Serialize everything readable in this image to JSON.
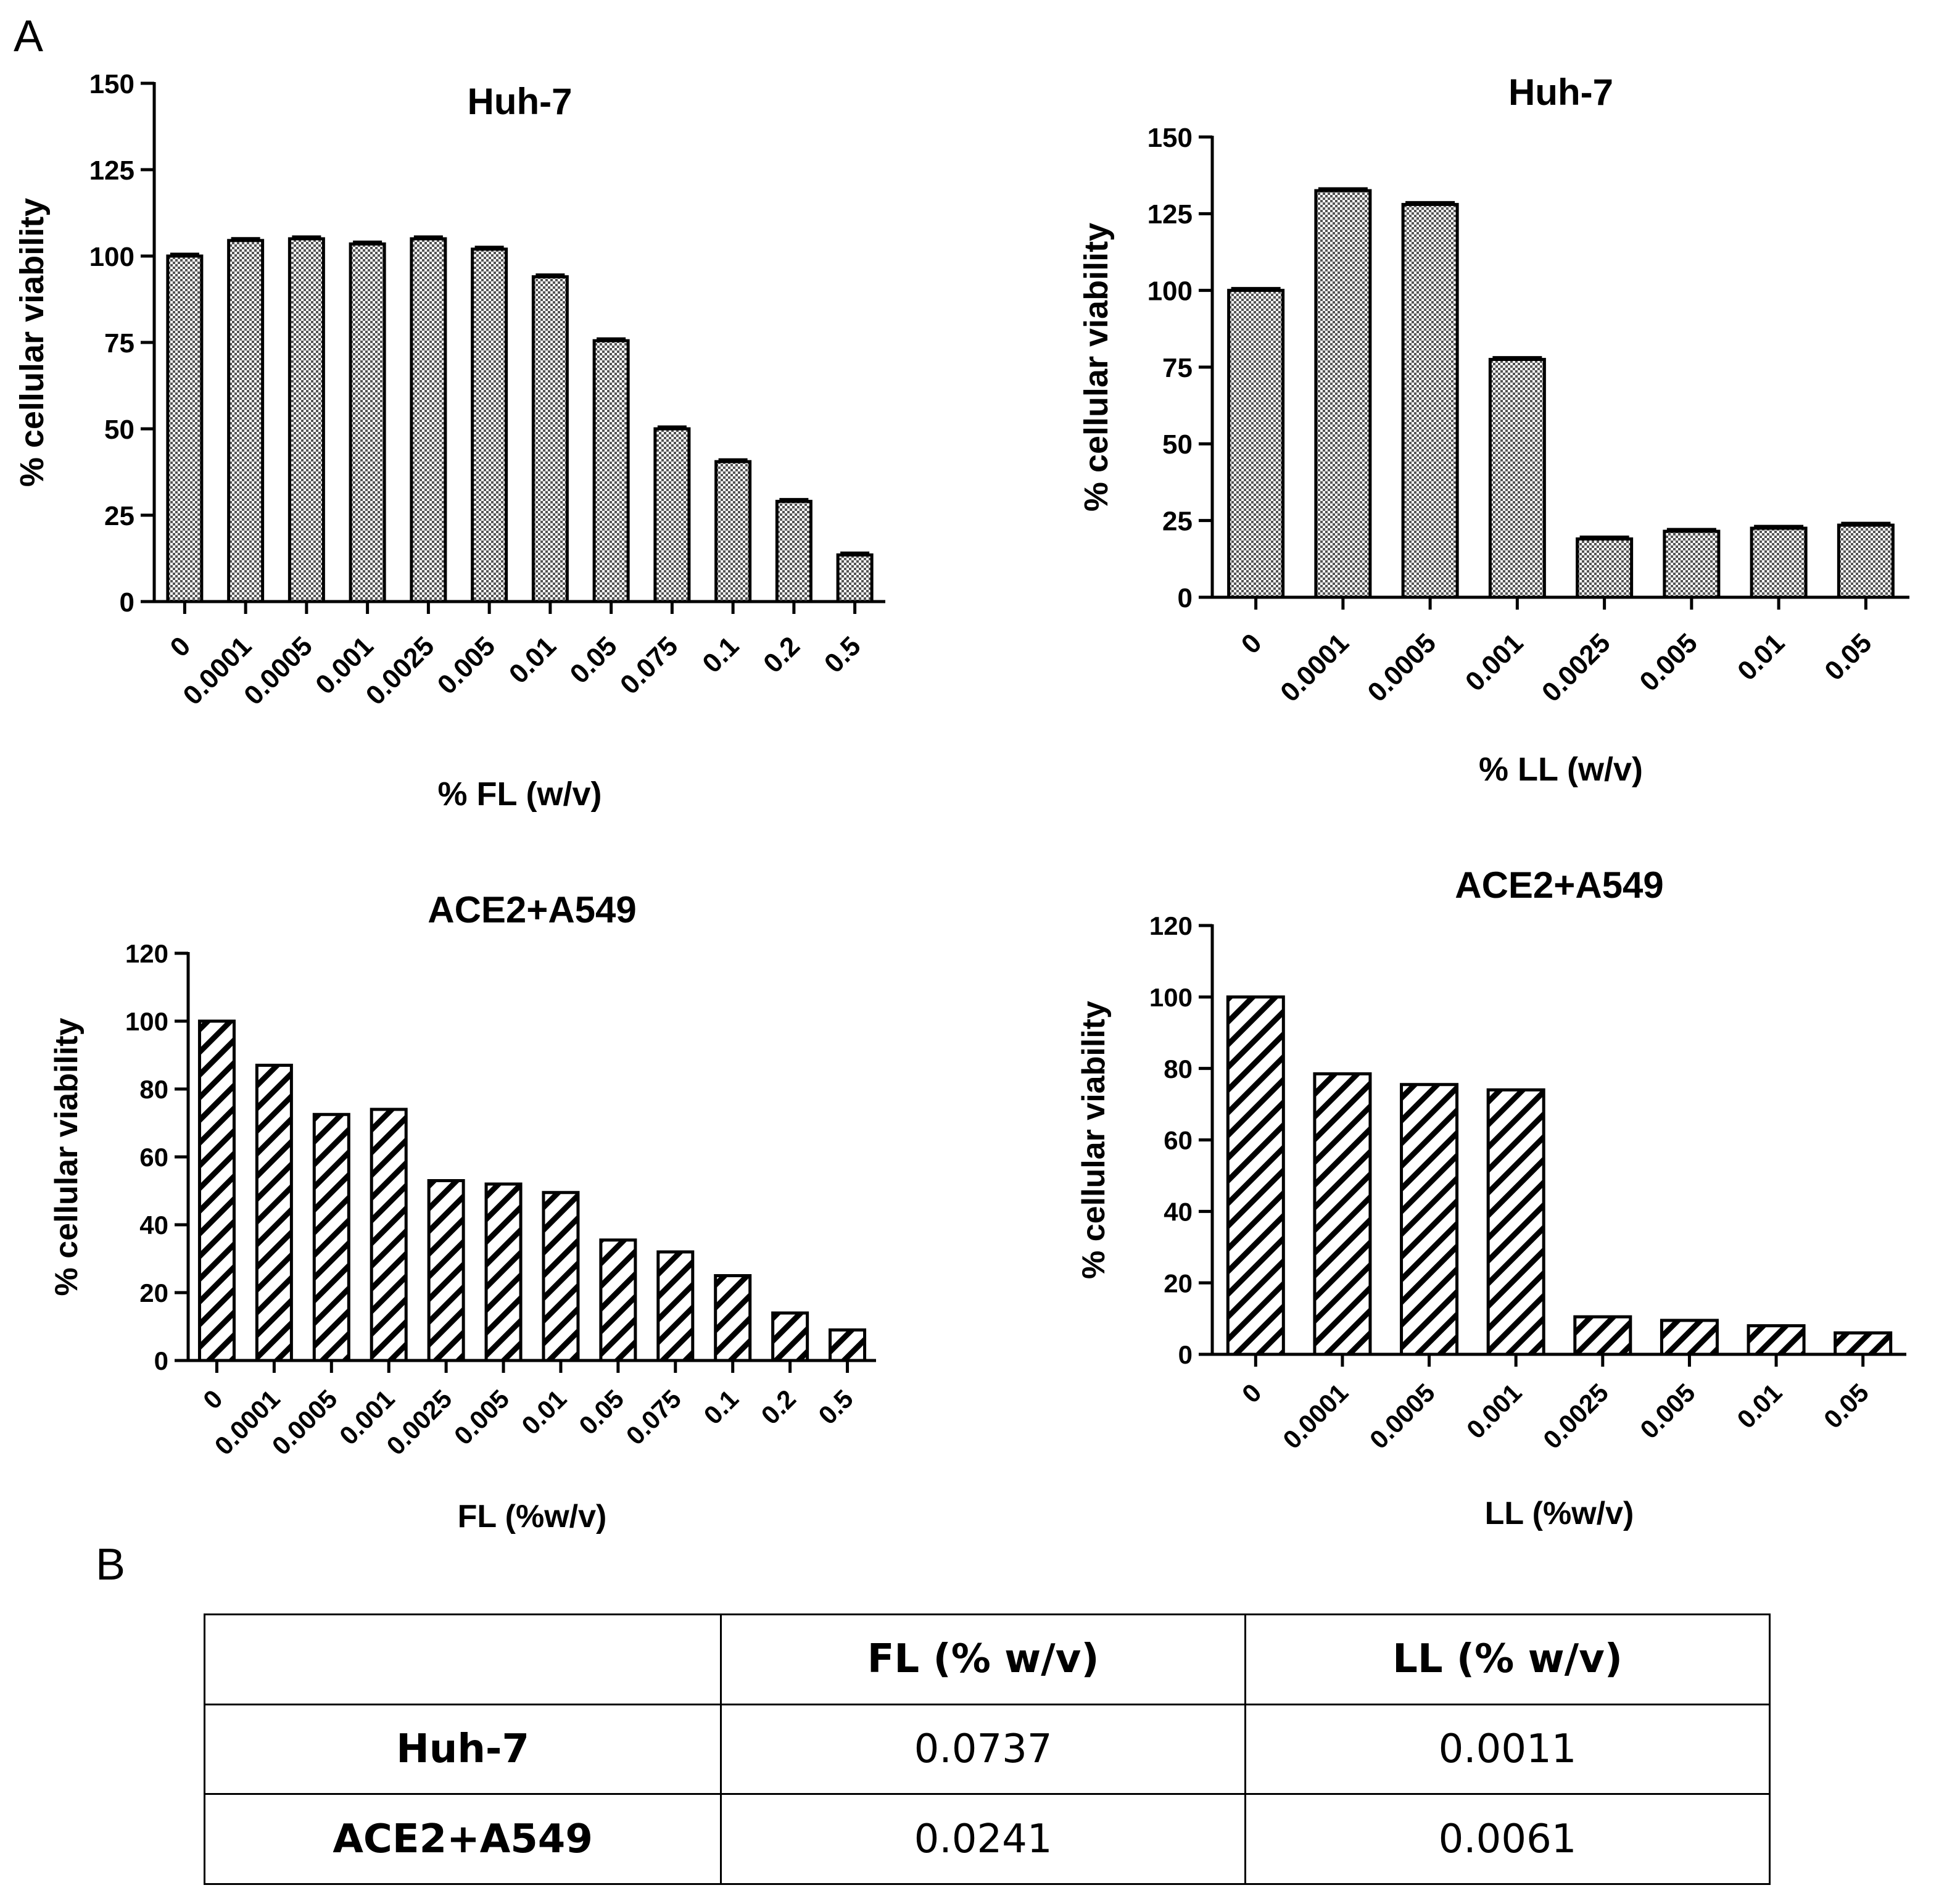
{
  "panel_labels": {
    "a": "A",
    "b": "B"
  },
  "chart_data": [
    {
      "type": "bar",
      "title": "Huh-7",
      "xlabel": "% FL (w/v)",
      "ylabel": "% cellular viability",
      "categories": [
        "0",
        "0.0001",
        "0.0005",
        "0.001",
        "0.0025",
        "0.005",
        "0.01",
        "0.05",
        "0.075",
        "0.1",
        "0.2",
        "0.5"
      ],
      "values": [
        100,
        104.5,
        105,
        103.5,
        105,
        102,
        94,
        75.5,
        50,
        40.5,
        29,
        13.5
      ],
      "ylim": [
        0,
        150
      ],
      "yticks": [
        0,
        25,
        50,
        75,
        100,
        125,
        150
      ],
      "fill": "checker",
      "error_bars": true
    },
    {
      "type": "bar",
      "title": "Huh-7",
      "xlabel": "% LL (w/v)",
      "ylabel": "% cellular viability",
      "categories": [
        "0",
        "0.0001",
        "0.0005",
        "0.001",
        "0.0025",
        "0.005",
        "0.01",
        "0.05"
      ],
      "values": [
        100,
        132.5,
        128,
        77.5,
        19,
        21.5,
        22.5,
        23.5
      ],
      "ylim": [
        0,
        150
      ],
      "yticks": [
        0,
        25,
        50,
        75,
        100,
        125,
        150
      ],
      "fill": "checker",
      "error_bars": true
    },
    {
      "type": "bar",
      "title": "ACE2+A549",
      "xlabel": "FL (%w/v)",
      "ylabel": "% cellular viability",
      "categories": [
        "0",
        "0.0001",
        "0.0005",
        "0.001",
        "0.0025",
        "0.005",
        "0.01",
        "0.05",
        "0.075",
        "0.1",
        "0.2",
        "0.5"
      ],
      "values": [
        100,
        87,
        72.5,
        74,
        53,
        52,
        49.5,
        35.5,
        32,
        25,
        14,
        9
      ],
      "ylim": [
        0,
        120
      ],
      "yticks": [
        0,
        20,
        40,
        60,
        80,
        100,
        120
      ],
      "fill": "hatch",
      "error_bars": false
    },
    {
      "type": "bar",
      "title": "ACE2+A549",
      "xlabel": "LL (%w/v)",
      "ylabel": "% cellular viability",
      "categories": [
        "0",
        "0.0001",
        "0.0005",
        "0.001",
        "0.0025",
        "0.005",
        "0.01",
        "0.05"
      ],
      "values": [
        100,
        78.5,
        75.5,
        74,
        10.5,
        9.5,
        8,
        6
      ],
      "ylim": [
        0,
        120
      ],
      "yticks": [
        0,
        20,
        40,
        60,
        80,
        100,
        120
      ],
      "fill": "hatch",
      "error_bars": false
    }
  ],
  "table": {
    "headers": [
      "",
      "FL (% w/v)",
      "LL (% w/v)"
    ],
    "rows": [
      {
        "label": "Huh-7",
        "fl": "0.0737",
        "ll": "0.0011"
      },
      {
        "label": "ACE2+A549",
        "fl": "0.0241",
        "ll": "0.0061"
      }
    ]
  }
}
